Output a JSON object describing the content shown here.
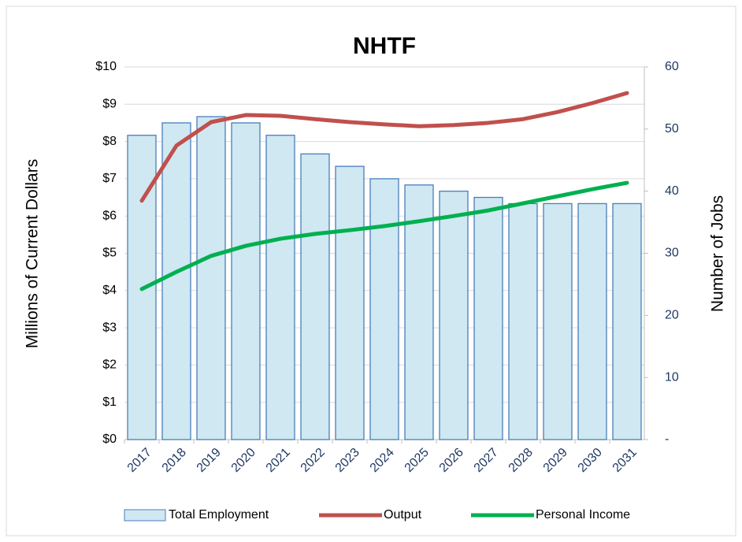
{
  "chart_data": {
    "type": "bar_line",
    "title": "NHTF",
    "y_label": "Millions of Current Dollars",
    "y2_label": "Number of Jobs",
    "categories": [
      "2017",
      "2018",
      "2019",
      "2020",
      "2021",
      "2022",
      "2023",
      "2024",
      "2025",
      "2026",
      "2027",
      "2028",
      "2029",
      "2030",
      "2031"
    ],
    "series": [
      {
        "name": "Total Employment",
        "type": "bar",
        "axis": "y2",
        "color": "#cfe8f1",
        "edge_color": "#4a7ebb",
        "values": [
          49,
          51,
          52,
          51,
          49,
          46,
          44,
          42,
          41,
          40,
          39,
          38,
          38,
          38,
          38
        ]
      },
      {
        "name": "Output",
        "type": "line",
        "color": "#c0504d",
        "values": [
          6.41,
          7.89,
          8.52,
          8.71,
          8.69,
          8.6,
          8.52,
          8.46,
          8.41,
          8.44,
          8.5,
          8.6,
          8.79,
          9.03,
          9.3
        ]
      },
      {
        "name": "Personal Income",
        "type": "line",
        "color": "#00b050",
        "values": [
          4.04,
          4.5,
          4.93,
          5.2,
          5.39,
          5.52,
          5.62,
          5.73,
          5.86,
          6.0,
          6.15,
          6.34,
          6.53,
          6.72,
          6.89
        ]
      }
    ],
    "ylim": [
      0,
      10
    ],
    "yticks": [
      {
        "value": 0,
        "label": "$0"
      },
      {
        "value": 1,
        "label": "$1"
      },
      {
        "value": 2,
        "label": "$2"
      },
      {
        "value": 3,
        "label": "$3"
      },
      {
        "value": 4,
        "label": "$4"
      },
      {
        "value": 5,
        "label": "$5"
      },
      {
        "value": 6,
        "label": "$6"
      },
      {
        "value": 7,
        "label": "$7"
      },
      {
        "value": 8,
        "label": "$8"
      },
      {
        "value": 9,
        "label": "$9"
      },
      {
        "value": 10,
        "label": "$10"
      }
    ],
    "y2lim": [
      0,
      60
    ],
    "y2ticks": [
      {
        "value": 0,
        "label": "-"
      },
      10,
      20,
      30,
      40,
      50,
      60
    ],
    "grid": true,
    "legend": "bottom"
  }
}
